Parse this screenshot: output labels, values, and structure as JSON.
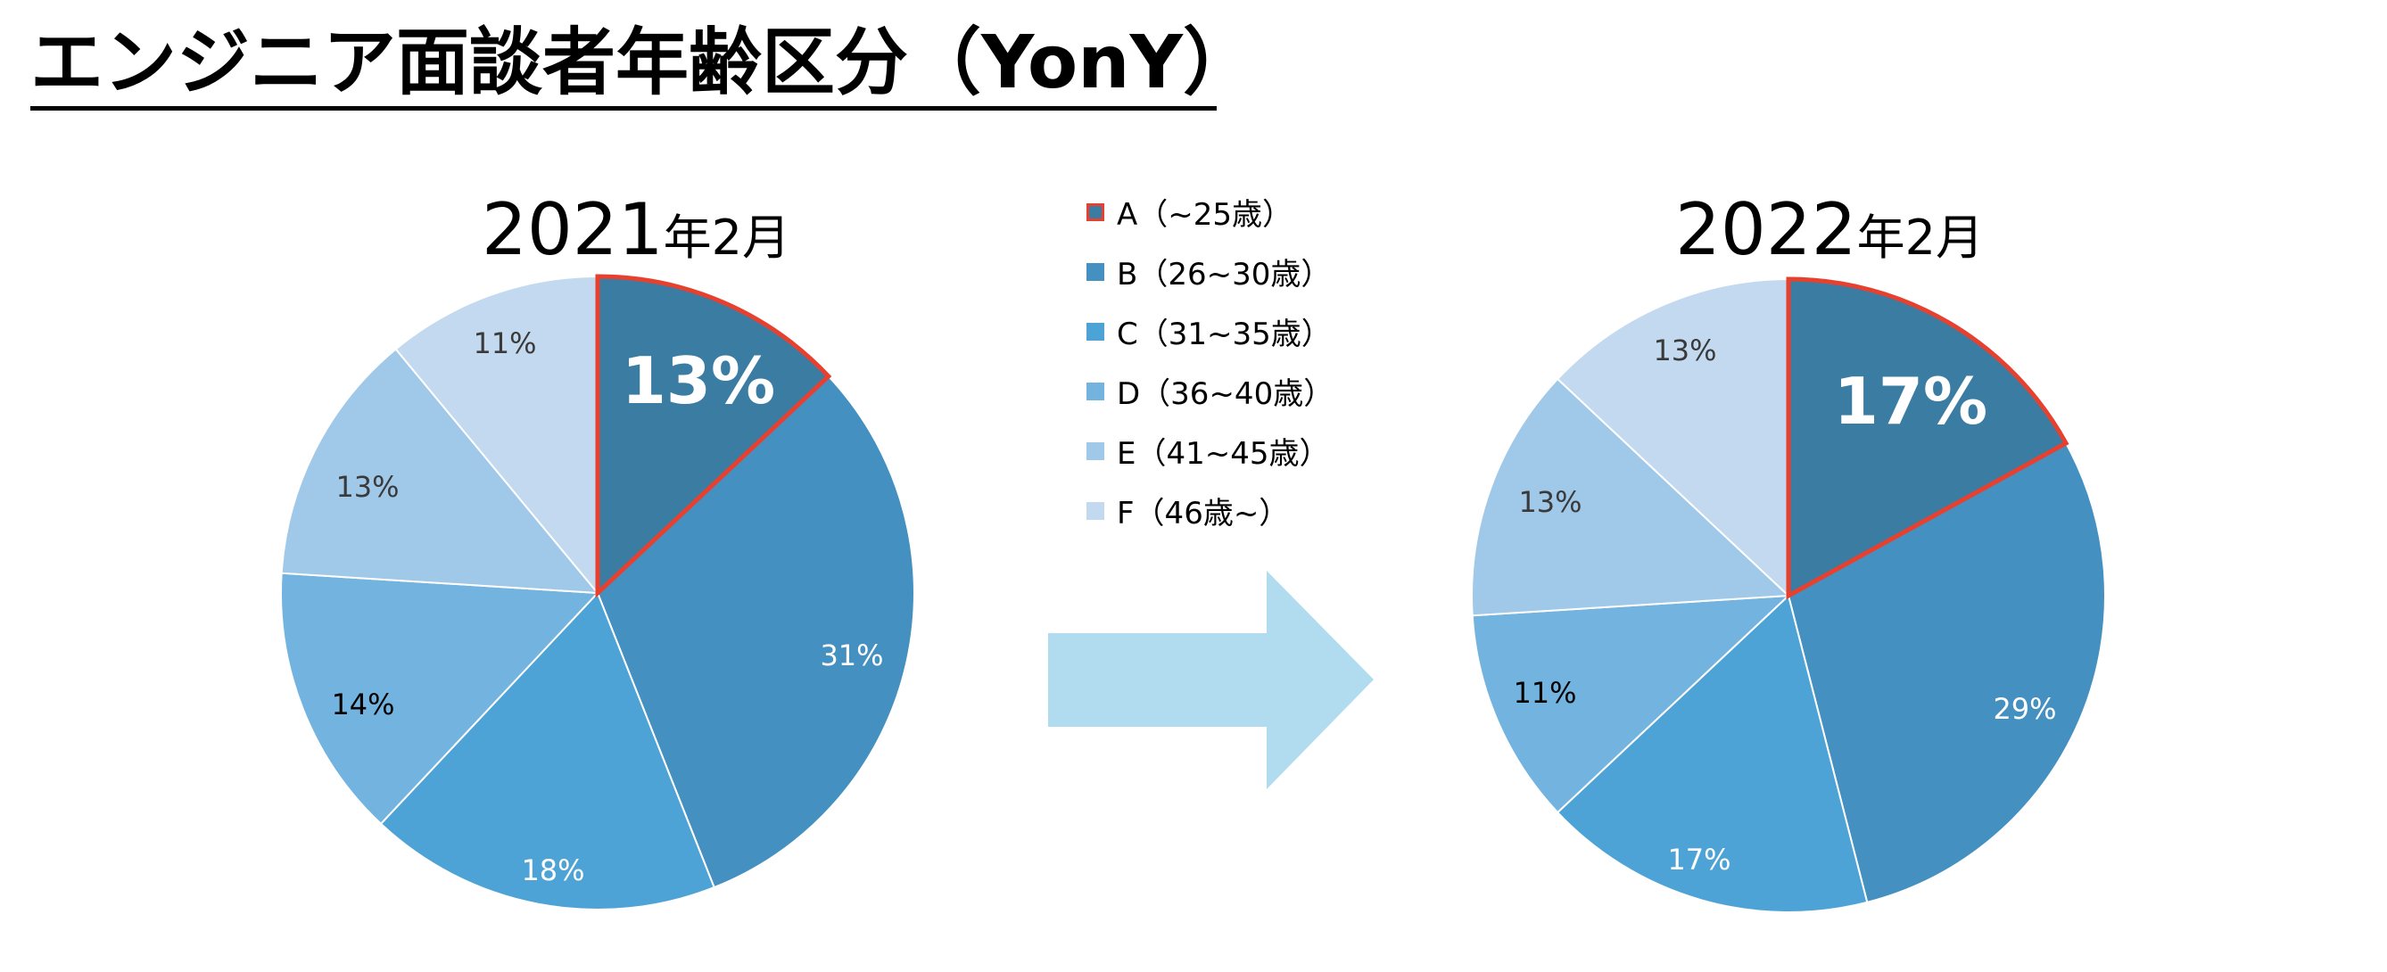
{
  "page": {
    "title": "エンジニア面談者年齢区分（YonY）"
  },
  "colors": {
    "A": "#3b7ca3",
    "B": "#4490c0",
    "C": "#4ea3d6",
    "D": "#72b3df",
    "E": "#a0c8e8",
    "F": "#c2d9ef",
    "highlight": "#e8402f",
    "arrow": "#b1dcf0"
  },
  "legend": [
    {
      "key": "A",
      "label": "A（~25歳）",
      "highlighted": true
    },
    {
      "key": "B",
      "label": "B（26~30歳）",
      "highlighted": false
    },
    {
      "key": "C",
      "label": "C（31~35歳）",
      "highlighted": false
    },
    {
      "key": "D",
      "label": "D（36~40歳）",
      "highlighted": false
    },
    {
      "key": "E",
      "label": "E（41~45歳）",
      "highlighted": false
    },
    {
      "key": "F",
      "label": "F（46歳~）",
      "highlighted": false
    }
  ],
  "chart_data": [
    {
      "type": "pie",
      "title_main": "2021",
      "title_unit": "年2月",
      "categories": [
        "A（~25歳）",
        "B（26~30歳）",
        "C（31~35歳）",
        "D（36~40歳）",
        "E（41~45歳）",
        "F（46歳~）"
      ],
      "values": [
        13,
        31,
        18,
        14,
        13,
        11
      ],
      "labels": [
        "13%",
        "31%",
        "18%",
        "14%",
        "13%",
        "11%"
      ],
      "highlighted_slice": "A（~25歳）"
    },
    {
      "type": "pie",
      "title_main": "2022",
      "title_unit": "年2月",
      "categories": [
        "A（~25歳）",
        "B（26~30歳）",
        "C（31~35歳）",
        "D（36~40歳）",
        "E（41~45歳）",
        "F（46歳~）"
      ],
      "values": [
        17,
        29,
        17,
        11,
        13,
        13
      ],
      "labels": [
        "17%",
        "29%",
        "17%",
        "11%",
        "13%",
        "13%"
      ],
      "highlighted_slice": "A（~25歳）"
    }
  ]
}
